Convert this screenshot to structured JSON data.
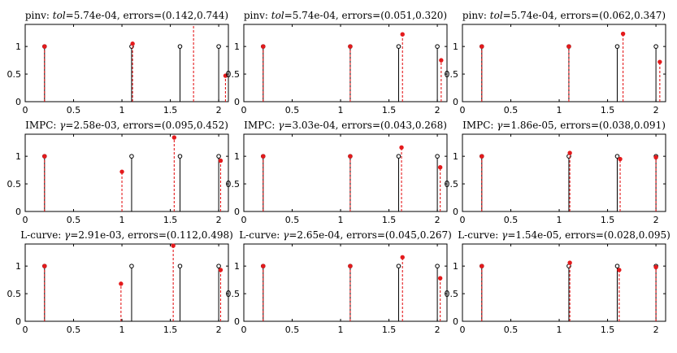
{
  "chart_data": [
    {
      "type": "stem",
      "title": {
        "prefix": "pinv: ",
        "param": "tol",
        "value": "=5.74e-04, errors=(0.142,0.744)"
      },
      "xlim": [
        0,
        2.1
      ],
      "ylim": [
        0,
        1.4
      ],
      "xticks": [
        "0",
        "0.5",
        "1",
        "1.5",
        "2"
      ],
      "yticks": [
        "0",
        "0.5",
        "1"
      ],
      "series": [
        {
          "x": [
            0.2,
            1.1,
            1.6,
            2.0
          ],
          "y": [
            1,
            1,
            1,
            1
          ]
        },
        {
          "x": [
            0.2,
            1.11,
            1.74,
            2.07
          ],
          "y": [
            1,
            1.05,
            1.4,
            0.47
          ]
        }
      ]
    },
    {
      "type": "stem",
      "title": {
        "prefix": "pinv: ",
        "param": "tol",
        "value": "=5.74e-04, errors=(0.051,0.320)"
      },
      "xlim": [
        0,
        2.1
      ],
      "ylim": [
        0,
        1.4
      ],
      "xticks": [
        "0",
        "0.5",
        "1",
        "1.5",
        "2"
      ],
      "yticks": [
        "0",
        "0.5",
        "1"
      ],
      "series": [
        {
          "x": [
            0.2,
            1.1,
            1.6,
            2.0
          ],
          "y": [
            1,
            1,
            1,
            1
          ]
        },
        {
          "x": [
            0.2,
            1.1,
            1.64,
            2.04
          ],
          "y": [
            1,
            1,
            1.22,
            0.75
          ]
        }
      ]
    },
    {
      "type": "stem",
      "title": {
        "prefix": "pinv: ",
        "param": "tol",
        "value": "=5.74e-04, errors=(0.062,0.347)"
      },
      "xlim": [
        0,
        2.1
      ],
      "ylim": [
        0,
        1.4
      ],
      "xticks": [
        "0",
        "0.5",
        "1",
        "1.5",
        "2"
      ],
      "yticks": [
        "0",
        "0.5",
        "1"
      ],
      "series": [
        {
          "x": [
            0.2,
            1.1,
            1.6,
            2.0
          ],
          "y": [
            1,
            1,
            1,
            1
          ]
        },
        {
          "x": [
            0.2,
            1.1,
            1.66,
            2.04
          ],
          "y": [
            1,
            1,
            1.23,
            0.72
          ]
        }
      ]
    },
    {
      "type": "stem",
      "title": {
        "prefix": "IMPC: ",
        "param": "γ",
        "value": "=2.58e-03, errors=(0.095,0.452)"
      },
      "xlim": [
        0,
        2.1
      ],
      "ylim": [
        0,
        1.4
      ],
      "xticks": [
        "0",
        "0.5",
        "1",
        "1.5",
        "2"
      ],
      "yticks": [
        "0",
        "0.5",
        "1"
      ],
      "series": [
        {
          "x": [
            0.2,
            1.1,
            1.6,
            2.0
          ],
          "y": [
            1,
            1,
            1,
            1
          ]
        },
        {
          "x": [
            0.2,
            1.0,
            1.54,
            2.02
          ],
          "y": [
            1,
            0.72,
            1.34,
            0.92
          ]
        }
      ]
    },
    {
      "type": "stem",
      "title": {
        "prefix": "IMPC: ",
        "param": "γ",
        "value": "=3.03e-04, errors=(0.043,0.268)"
      },
      "xlim": [
        0,
        2.1
      ],
      "ylim": [
        0,
        1.4
      ],
      "xticks": [
        "0",
        "0.5",
        "1",
        "1.5",
        "2"
      ],
      "yticks": [
        "0",
        "0.5",
        "1"
      ],
      "series": [
        {
          "x": [
            0.2,
            1.1,
            1.6,
            2.0
          ],
          "y": [
            1,
            1,
            1,
            1
          ]
        },
        {
          "x": [
            0.2,
            1.1,
            1.63,
            2.03
          ],
          "y": [
            1,
            1,
            1.16,
            0.8
          ]
        }
      ]
    },
    {
      "type": "stem",
      "title": {
        "prefix": "IMPC: ",
        "param": "γ",
        "value": "=1.86e-05, errors=(0.038,0.091)"
      },
      "xlim": [
        0,
        2.1
      ],
      "ylim": [
        0,
        1.4
      ],
      "xticks": [
        "0",
        "0.5",
        "1",
        "1.5",
        "2"
      ],
      "yticks": [
        "0",
        "0.5",
        "1"
      ],
      "series": [
        {
          "x": [
            0.2,
            1.1,
            1.6,
            2.0
          ],
          "y": [
            1,
            1,
            1,
            1
          ]
        },
        {
          "x": [
            0.2,
            1.11,
            1.63,
            2.0
          ],
          "y": [
            1,
            1.06,
            0.95,
            0.98
          ]
        }
      ]
    },
    {
      "type": "stem",
      "title": {
        "prefix": "L-curve: ",
        "param": "γ",
        "value": "=2.91e-03, errors=(0.112,0.498)"
      },
      "xlim": [
        0,
        2.1
      ],
      "ylim": [
        0,
        1.4
      ],
      "xticks": [
        "0",
        "0.5",
        "1",
        "1.5",
        "2"
      ],
      "yticks": [
        "0",
        "0.5",
        "1"
      ],
      "series": [
        {
          "x": [
            0.2,
            1.1,
            1.6,
            2.0
          ],
          "y": [
            1,
            1,
            1,
            1
          ]
        },
        {
          "x": [
            0.2,
            0.99,
            1.53,
            2.02
          ],
          "y": [
            1,
            0.68,
            1.37,
            0.93
          ]
        }
      ]
    },
    {
      "type": "stem",
      "title": {
        "prefix": "L-curve: ",
        "param": "γ",
        "value": "=2.65e-04, errors=(0.045,0.267)"
      },
      "xlim": [
        0,
        2.1
      ],
      "ylim": [
        0,
        1.4
      ],
      "xticks": [
        "0",
        "0.5",
        "1",
        "1.5",
        "2"
      ],
      "yticks": [
        "0",
        "0.5",
        "1"
      ],
      "series": [
        {
          "x": [
            0.2,
            1.1,
            1.6,
            2.0
          ],
          "y": [
            1,
            1,
            1,
            1
          ]
        },
        {
          "x": [
            0.2,
            1.1,
            1.64,
            2.03
          ],
          "y": [
            1,
            1,
            1.16,
            0.78
          ]
        }
      ]
    },
    {
      "type": "stem",
      "title": {
        "prefix": "L-curve: ",
        "param": "γ",
        "value": "=1.54e-05, errors=(0.028,0.095)"
      },
      "xlim": [
        0,
        2.1
      ],
      "ylim": [
        0,
        1.4
      ],
      "xticks": [
        "0",
        "0.5",
        "1",
        "1.5",
        "2"
      ],
      "yticks": [
        "0",
        "0.5",
        "1"
      ],
      "series": [
        {
          "x": [
            0.2,
            1.1,
            1.6,
            2.0
          ],
          "y": [
            1,
            1,
            1,
            1
          ]
        },
        {
          "x": [
            0.2,
            1.11,
            1.62,
            2.0
          ],
          "y": [
            1,
            1.06,
            0.93,
            0.98
          ]
        }
      ]
    }
  ],
  "colors": {
    "true": "#000000",
    "estimate": "#e41a1c"
  }
}
